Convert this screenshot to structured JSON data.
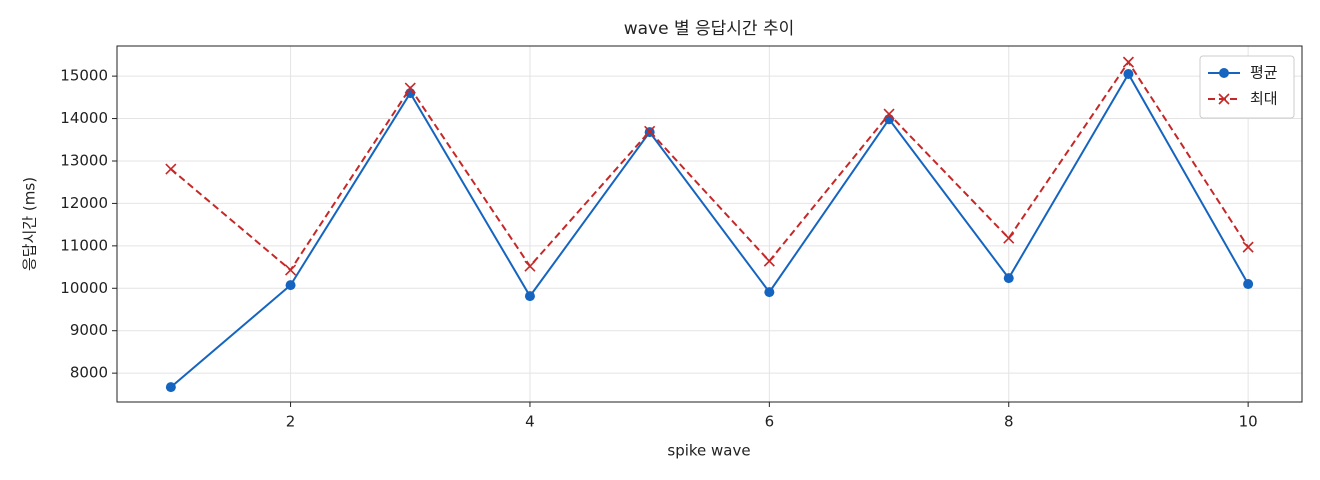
{
  "chart_data": {
    "type": "line",
    "title": "wave 별 응답시간 추이",
    "xlabel": "spike wave",
    "ylabel": "응답시간 (ms)",
    "x": [
      1,
      2,
      3,
      4,
      5,
      6,
      7,
      8,
      9,
      10
    ],
    "series": [
      {
        "name": "평균",
        "color": "#1565c0",
        "marker": "o",
        "linestyle": "solid",
        "values": [
          7670,
          10075,
          14600,
          9815,
          13680,
          9910,
          13985,
          10240,
          15050,
          10100
        ]
      },
      {
        "name": "최대",
        "color": "#c62828",
        "marker": "x",
        "linestyle": "dashed",
        "values": [
          12810,
          10430,
          14720,
          10520,
          13700,
          10640,
          14105,
          11180,
          15330,
          10970
        ]
      }
    ],
    "xlim": [
      0.55,
      10.45
    ],
    "xticks": [
      2,
      4,
      6,
      8,
      10
    ],
    "ylim": [
      7320,
      15710
    ],
    "yticks": [
      8000,
      9000,
      10000,
      11000,
      12000,
      13000,
      14000,
      15000
    ],
    "grid": true,
    "legend": "upper right"
  }
}
